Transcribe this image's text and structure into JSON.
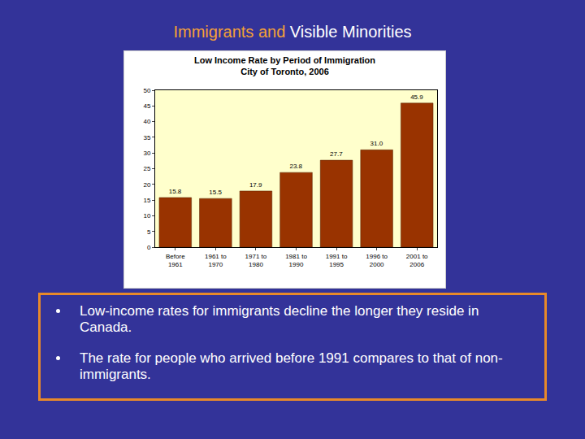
{
  "slide": {
    "title": [
      {
        "text": "Immigrants and",
        "color": "#f5a038"
      },
      {
        "text": "Visible Minorities",
        "color": "#ffffff"
      }
    ],
    "bullets": [
      "Low-income rates for immigrants decline the longer they reside in Canada.",
      "The rate for people who arrived before 1991 compares to that of non-immigrants."
    ]
  },
  "chart_data": {
    "type": "bar",
    "title": "Low Income Rate by Period of Immigration",
    "subtitle": "City of Toronto, 2006",
    "categories": [
      "Before 1961",
      "1961 to 1970",
      "1971 to 1980",
      "1981 to 1990",
      "1991 to 1995",
      "1996 to 2000",
      "2001 to 2006"
    ],
    "values": [
      15.8,
      15.5,
      17.9,
      23.8,
      27.7,
      31.0,
      45.9
    ],
    "value_labels": [
      "15.8",
      "15.5",
      "17.9",
      "23.8",
      "27.7",
      "31.0",
      "45.9"
    ],
    "data_labels": true,
    "color": "#993300",
    "ylim": [
      0,
      50
    ],
    "yticks": [
      0,
      5,
      10,
      15,
      20,
      25,
      30,
      35,
      40,
      45,
      50
    ],
    "grid": false
  }
}
